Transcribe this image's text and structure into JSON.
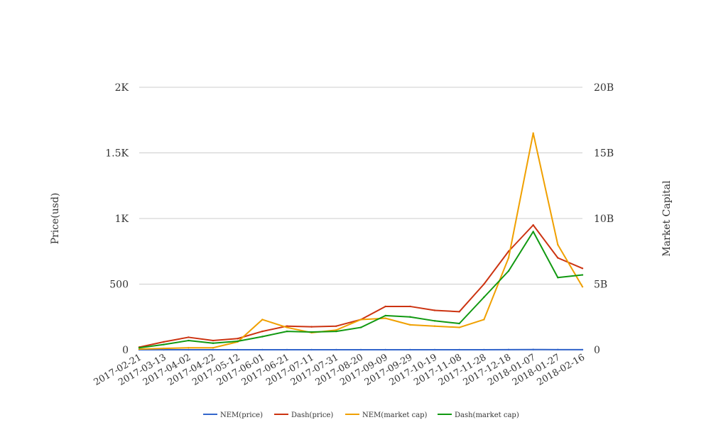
{
  "chart_data": {
    "type": "line",
    "title": "",
    "x": [
      "2017-02-21",
      "2017-03-13",
      "2017-04-02",
      "2017-04-22",
      "2017-05-12",
      "2017-06-01",
      "2017-06-21",
      "2017-07-11",
      "2017-07-31",
      "2017-08-20",
      "2017-09-09",
      "2017-09-29",
      "2017-10-19",
      "2017-11-08",
      "2017-11-28",
      "2017-12-18",
      "2018-01-07",
      "2018-01-27",
      "2018-02-16"
    ],
    "x_tick_labels": [
      "2017-02-21",
      "2017-03-13",
      "2017-04-02",
      "2017-04-22",
      "2017-05-12",
      "2017-06-01",
      "2017-06-21",
      "2017-07-11",
      "2017-07-31",
      "2017-08-20",
      "2017-09-09",
      "2017-09-29",
      "2017-10-19",
      "2017-11-08",
      "2017-11-28",
      "2017-12-18",
      "2018-01-07",
      "2018-01-27",
      "2018-02-16"
    ],
    "y_left": {
      "label": "Price(usd)",
      "range": [
        0,
        2000
      ],
      "ticks": [
        0,
        500,
        1000,
        1500,
        2000
      ],
      "tick_labels": [
        "0",
        "500",
        "1K",
        "1.5K",
        "2K"
      ]
    },
    "y_right": {
      "label": "Market Capital",
      "range": [
        0,
        20000000000
      ],
      "ticks": [
        0,
        5000000000,
        10000000000,
        15000000000,
        20000000000
      ],
      "tick_labels": [
        "0",
        "5B",
        "10B",
        "15B",
        "20B"
      ]
    },
    "grid": true,
    "legend_position": "bottom",
    "series": [
      {
        "name": "NEM(price)",
        "axis": "left",
        "color": "#3366cc",
        "values": [
          0.01,
          0.01,
          0.02,
          0.01,
          0.07,
          0.21,
          0.18,
          0.14,
          0.16,
          0.25,
          0.27,
          0.2,
          0.19,
          0.18,
          0.26,
          0.8,
          1.4,
          0.85,
          0.55
        ]
      },
      {
        "name": "Dash(price)",
        "axis": "left",
        "color": "#cc3311",
        "values": [
          20,
          60,
          95,
          70,
          85,
          140,
          180,
          175,
          180,
          230,
          330,
          330,
          300,
          290,
          500,
          750,
          950,
          700,
          620
        ]
      },
      {
        "name": "NEM(market cap)",
        "axis": "right",
        "color": "#f0a000",
        "values": [
          50000000,
          100000000,
          150000000,
          150000000,
          600000000,
          2300000000,
          1700000000,
          1300000000,
          1500000000,
          2300000000,
          2400000000,
          1900000000,
          1800000000,
          1700000000,
          2300000000,
          7000000000,
          16500000000,
          8000000000,
          4800000000
        ]
      },
      {
        "name": "Dash(market cap)",
        "axis": "right",
        "color": "#119911",
        "values": [
          150000000,
          400000000,
          700000000,
          500000000,
          650000000,
          1000000000,
          1400000000,
          1350000000,
          1400000000,
          1700000000,
          2600000000,
          2500000000,
          2200000000,
          2000000000,
          4000000000,
          6000000000,
          9000000000,
          5500000000,
          5700000000
        ]
      }
    ]
  }
}
